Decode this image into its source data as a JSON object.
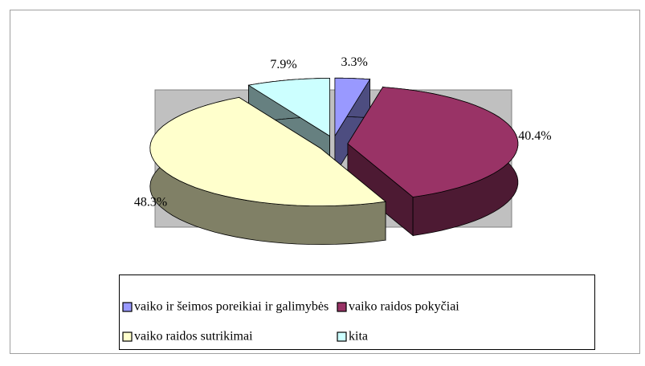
{
  "chart_data": {
    "type": "pie",
    "three_d": true,
    "exploded": true,
    "categories": [
      "vaiko ir šeimos poreikiai ir galimybės",
      "vaiko raidos pokyčiai",
      "vaiko raidos sutrikimai",
      "kita"
    ],
    "values": [
      3.3,
      40.4,
      48.3,
      7.9
    ],
    "value_labels": [
      "3.3%",
      "40.4%",
      "48.3%",
      "7.9%"
    ],
    "colors": [
      "#9999ff",
      "#993366",
      "#ffffcc",
      "#ccffff"
    ],
    "legend": "bottom"
  }
}
